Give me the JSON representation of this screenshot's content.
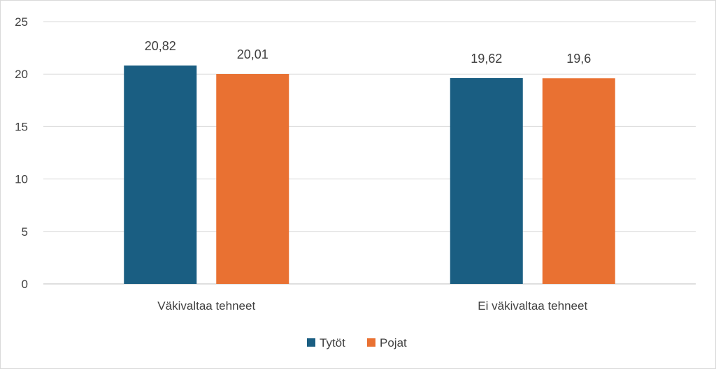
{
  "chart_data": {
    "type": "bar",
    "categories": [
      "Väkivaltaa tehneet",
      "Ei väkivaltaa tehneet"
    ],
    "series": [
      {
        "name": "Tytöt",
        "values": [
          20.82,
          19.62
        ],
        "labels": [
          "20,82",
          "19,62"
        ],
        "color": "#1a5e82"
      },
      {
        "name": "Pojat",
        "values": [
          20.01,
          19.6
        ],
        "labels": [
          "20,01",
          "19,6"
        ],
        "color": "#e97132"
      }
    ],
    "ylim": [
      0,
      25
    ],
    "yticks": [
      0,
      5,
      10,
      15,
      20,
      25
    ],
    "grid": true,
    "legend": "bottom"
  }
}
